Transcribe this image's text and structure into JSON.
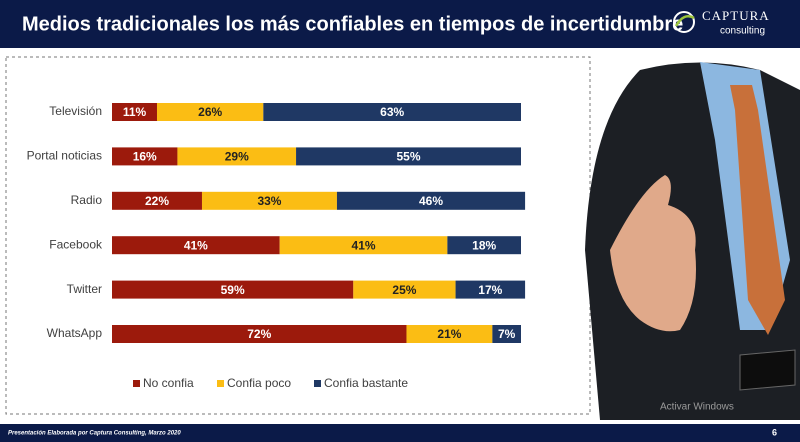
{
  "header": {
    "title": "Medios tradicionales los más confiables en tiempos de incertidumbre",
    "logo_name": "CAPTURA",
    "logo_tagline": "consulting"
  },
  "chart_data": {
    "type": "stacked-bar-horizontal",
    "categories": [
      "Televisión",
      "Portal noticias",
      "Radio",
      "Facebook",
      "Twitter",
      "WhatsApp"
    ],
    "xlim": [
      0,
      100
    ],
    "series": [
      {
        "name": "No confia",
        "color": "#9c1a0c",
        "values": [
          11,
          16,
          22,
          41,
          59,
          72
        ],
        "value_labels": [
          "11%",
          "16%",
          "22%",
          "41%",
          "59%",
          "72%"
        ]
      },
      {
        "name": "Confia poco",
        "color": "#fbbd14",
        "values": [
          26,
          29,
          33,
          41,
          25,
          21
        ],
        "value_labels": [
          "26%",
          "29%",
          "33%",
          "41%",
          "25%",
          "21%"
        ]
      },
      {
        "name": "Confia bastante",
        "color": "#1f3864",
        "values": [
          63,
          55,
          46,
          18,
          17,
          7
        ],
        "value_labels": [
          "63%",
          "55%",
          "46%",
          "18%",
          "17%",
          "7%"
        ]
      }
    ],
    "legend": "bottom"
  },
  "footer": {
    "note": "Presentación Elaborada por Captura Consulting, Marzo 2020",
    "page": "6"
  },
  "watermark": "Activar Windows"
}
